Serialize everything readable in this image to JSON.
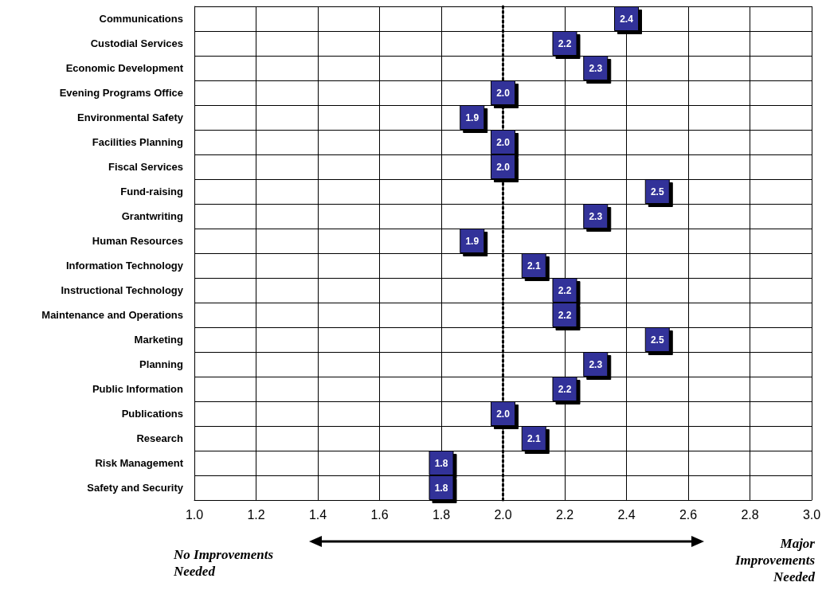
{
  "chart_data": {
    "type": "scatter",
    "categories": [
      "Communications",
      "Custodial Services",
      "Economic Development",
      "Evening Programs Office",
      "Environmental Safety",
      "Facilities Planning",
      "Fiscal Services",
      "Fund-raising",
      "Grantwriting",
      "Human Resources",
      "Information Technology",
      "Instructional Technology",
      "Maintenance and Operations",
      "Marketing",
      "Planning",
      "Public Information",
      "Publications",
      "Research",
      "Risk Management",
      "Safety and Security"
    ],
    "values": [
      2.4,
      2.2,
      2.3,
      2.0,
      1.9,
      2.0,
      2.0,
      2.5,
      2.3,
      1.9,
      2.1,
      2.2,
      2.2,
      2.5,
      2.3,
      2.2,
      2.0,
      2.1,
      1.8,
      1.8
    ],
    "color": "#333399",
    "orientation": "horizontal",
    "xlim": [
      1.0,
      3.0
    ],
    "xticks": [
      {
        "value": 1.0,
        "label": "1.0"
      },
      {
        "value": 1.2,
        "label": "1.2"
      },
      {
        "value": 1.4,
        "label": "1.4"
      },
      {
        "value": 1.6,
        "label": "1.6"
      },
      {
        "value": 1.8,
        "label": "1.8"
      },
      {
        "value": 2.0,
        "label": "2.0"
      },
      {
        "value": 2.2,
        "label": "2.2"
      },
      {
        "value": 2.4,
        "label": "2.4"
      },
      {
        "value": 2.6,
        "label": "2.6"
      },
      {
        "value": 2.8,
        "label": "2.8"
      },
      {
        "value": 3.0,
        "label": "3.0"
      }
    ],
    "grid": true,
    "marker": "square",
    "value_labels": [
      "2.4",
      "2.2",
      "2.3",
      "2.0",
      "1.9",
      "2.0",
      "2.0",
      "2.5",
      "2.3",
      "1.9",
      "2.1",
      "2.2",
      "2.2",
      "2.5",
      "2.3",
      "2.2",
      "2.0",
      "2.1",
      "1.8",
      "1.8"
    ],
    "ref_lines": [
      {
        "axis": "x",
        "value": 2.0,
        "label": null,
        "line_style": "dotted",
        "color": "#000000"
      }
    ],
    "annotations": [
      "No Improvements Needed",
      "Major Improvements Needed"
    ]
  }
}
